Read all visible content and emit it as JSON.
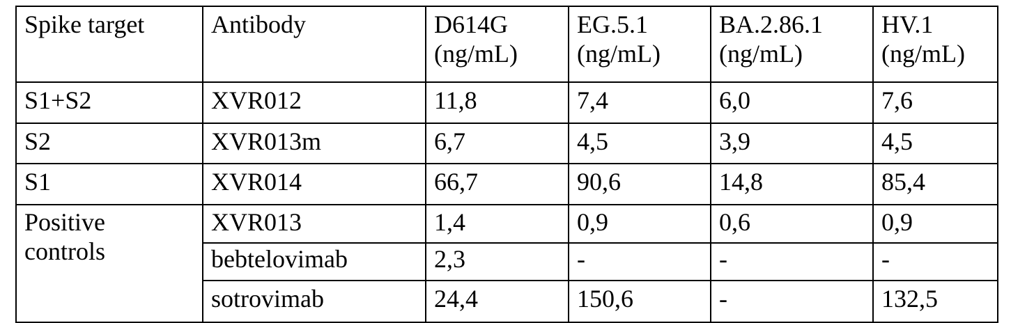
{
  "table": {
    "headers": {
      "target": "Spike target",
      "antibody": "Antibody",
      "d614g": [
        "D614G",
        "(ng/mL)"
      ],
      "eg51": [
        "EG.5.1",
        "(ng/mL)"
      ],
      "ba2861": [
        "BA.2.86.1",
        "(ng/mL)"
      ],
      "hv1": [
        "HV.1",
        "(ng/mL)"
      ]
    },
    "rows": [
      {
        "target": "S1+S2",
        "antibody": "XVR012",
        "d614g": "11,8",
        "eg51": "7,4",
        "ba2861": "6,0",
        "hv1": "7,6"
      },
      {
        "target": "S2",
        "antibody": "XVR013m",
        "d614g": "6,7",
        "eg51": "4,5",
        "ba2861": "3,9",
        "hv1": "4,5"
      },
      {
        "target": "S1",
        "antibody": "XVR014",
        "d614g": "66,7",
        "eg51": "90,6",
        "ba2861": "14,8",
        "hv1": "85,4"
      },
      {
        "target": [
          "Positive",
          "controls"
        ],
        "antibody": "XVR013",
        "d614g": "1,4",
        "eg51": "0,9",
        "ba2861": "0,6",
        "hv1": "0,9"
      },
      {
        "antibody": "bebtelovimab",
        "d614g": "2,3",
        "eg51": "-",
        "ba2861": "-",
        "hv1": "-"
      },
      {
        "antibody": "sotrovimab",
        "d614g": "24,4",
        "eg51": "150,6",
        "ba2861": "-",
        "hv1": "132,5"
      }
    ]
  }
}
